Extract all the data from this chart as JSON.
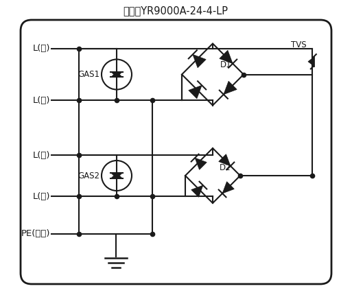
{
  "title": "型号：YR9000A-24-4-LP",
  "labels": [
    "L(红)",
    "L(黑)",
    "L(棕)",
    "L(蓝)",
    "PE(黄绿)"
  ],
  "component_labels": [
    "GAS1",
    "GAS2",
    "D1",
    "D2",
    "TVS"
  ],
  "bg_color": "#ffffff",
  "line_color": "#1a1a1a",
  "title_fontsize": 10.5,
  "label_fontsize": 9.5
}
